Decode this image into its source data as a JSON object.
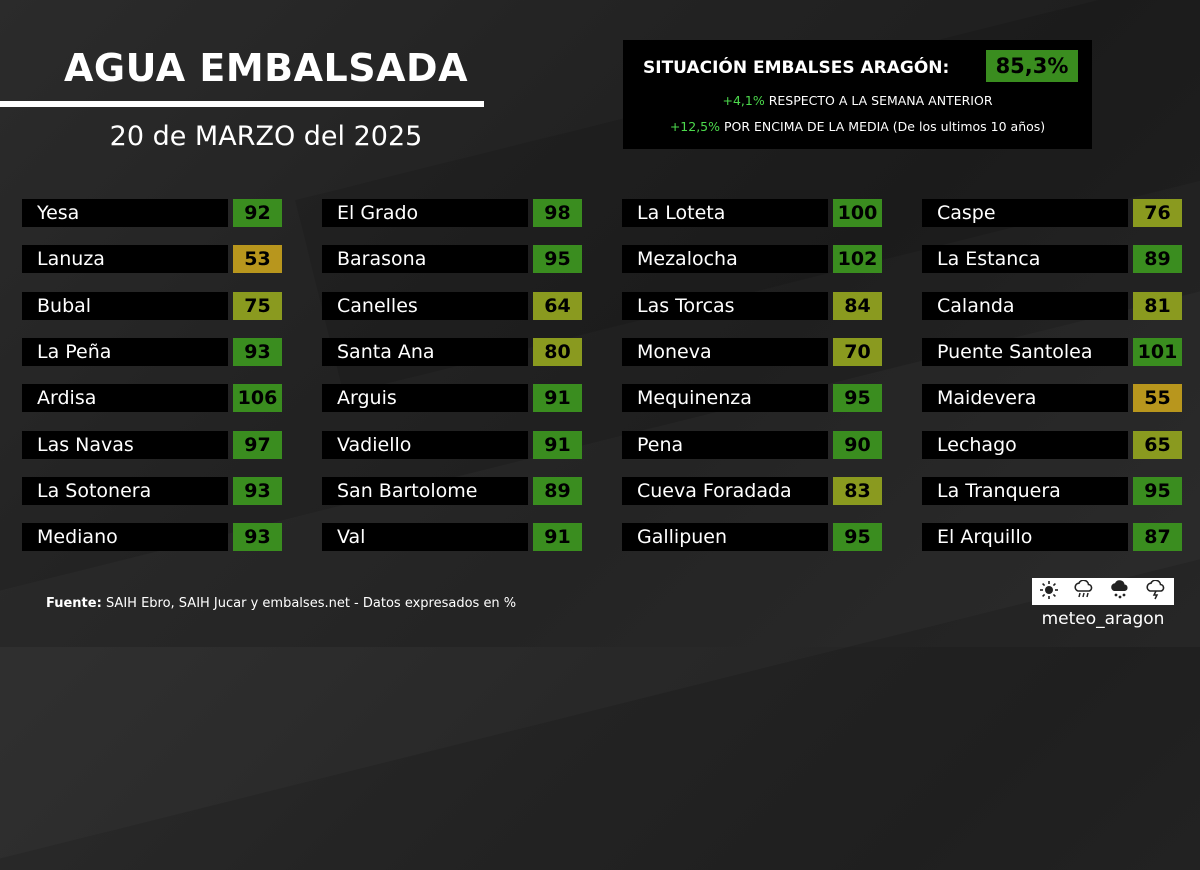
{
  "header": {
    "title": "AGUA EMBALSADA",
    "date": "20 de MARZO del 2025"
  },
  "summary": {
    "label": "SITUACIÓN EMBALSES ARAGÓN:",
    "percent": "85,3%",
    "weekly_change": "+4,1%",
    "weekly_text": "RESPECTO A LA SEMANA ANTERIOR",
    "avg_change": "+12,5%",
    "avg_text": "POR ENCIMA DE LA MEDIA (De los ultimos 10 años)"
  },
  "colors": {
    "green": "#3a8d1f",
    "olive": "#8a9a1f",
    "mustard": "#b8961d",
    "bright_green_text": "#4cd94c"
  },
  "reservoirs": [
    [
      {
        "name": "Yesa",
        "value": 92
      },
      {
        "name": "Lanuza",
        "value": 53
      },
      {
        "name": "Bubal",
        "value": 75
      },
      {
        "name": "La Peña",
        "value": 93
      },
      {
        "name": "Ardisa",
        "value": 106
      },
      {
        "name": "Las Navas",
        "value": 97
      },
      {
        "name": "La Sotonera",
        "value": 93
      },
      {
        "name": "Mediano",
        "value": 93
      }
    ],
    [
      {
        "name": "El Grado",
        "value": 98
      },
      {
        "name": "Barasona",
        "value": 95
      },
      {
        "name": "Canelles",
        "value": 64
      },
      {
        "name": "Santa Ana",
        "value": 80
      },
      {
        "name": "Arguis",
        "value": 91
      },
      {
        "name": "Vadiello",
        "value": 91
      },
      {
        "name": "San Bartolome",
        "value": 89
      },
      {
        "name": "Val",
        "value": 91
      }
    ],
    [
      {
        "name": "La Loteta",
        "value": 100
      },
      {
        "name": "Mezalocha",
        "value": 102
      },
      {
        "name": "Las Torcas",
        "value": 84
      },
      {
        "name": "Moneva",
        "value": 70
      },
      {
        "name": "Mequinenza",
        "value": 95
      },
      {
        "name": "Pena",
        "value": 90
      },
      {
        "name": "Cueva Foradada",
        "value": 83
      },
      {
        "name": "Gallipuen",
        "value": 95
      }
    ],
    [
      {
        "name": "Caspe",
        "value": 76
      },
      {
        "name": "La Estanca",
        "value": 89
      },
      {
        "name": "Calanda",
        "value": 81
      },
      {
        "name": "Puente Santolea",
        "value": 101
      },
      {
        "name": "Maidevera",
        "value": 55
      },
      {
        "name": "Lechago",
        "value": 65
      },
      {
        "name": "La Tranquera",
        "value": 95
      },
      {
        "name": "El Arquillo",
        "value": 87
      }
    ]
  ],
  "footer": {
    "source_label": "Fuente:",
    "source_text": "SAIH Ebro, SAIH Jucar y embalses.net - Datos expresados en %"
  },
  "brand": {
    "name": "meteo_aragon",
    "icons": [
      "sun-icon",
      "rain-cloud-icon",
      "snow-cloud-icon",
      "storm-cloud-icon"
    ]
  }
}
